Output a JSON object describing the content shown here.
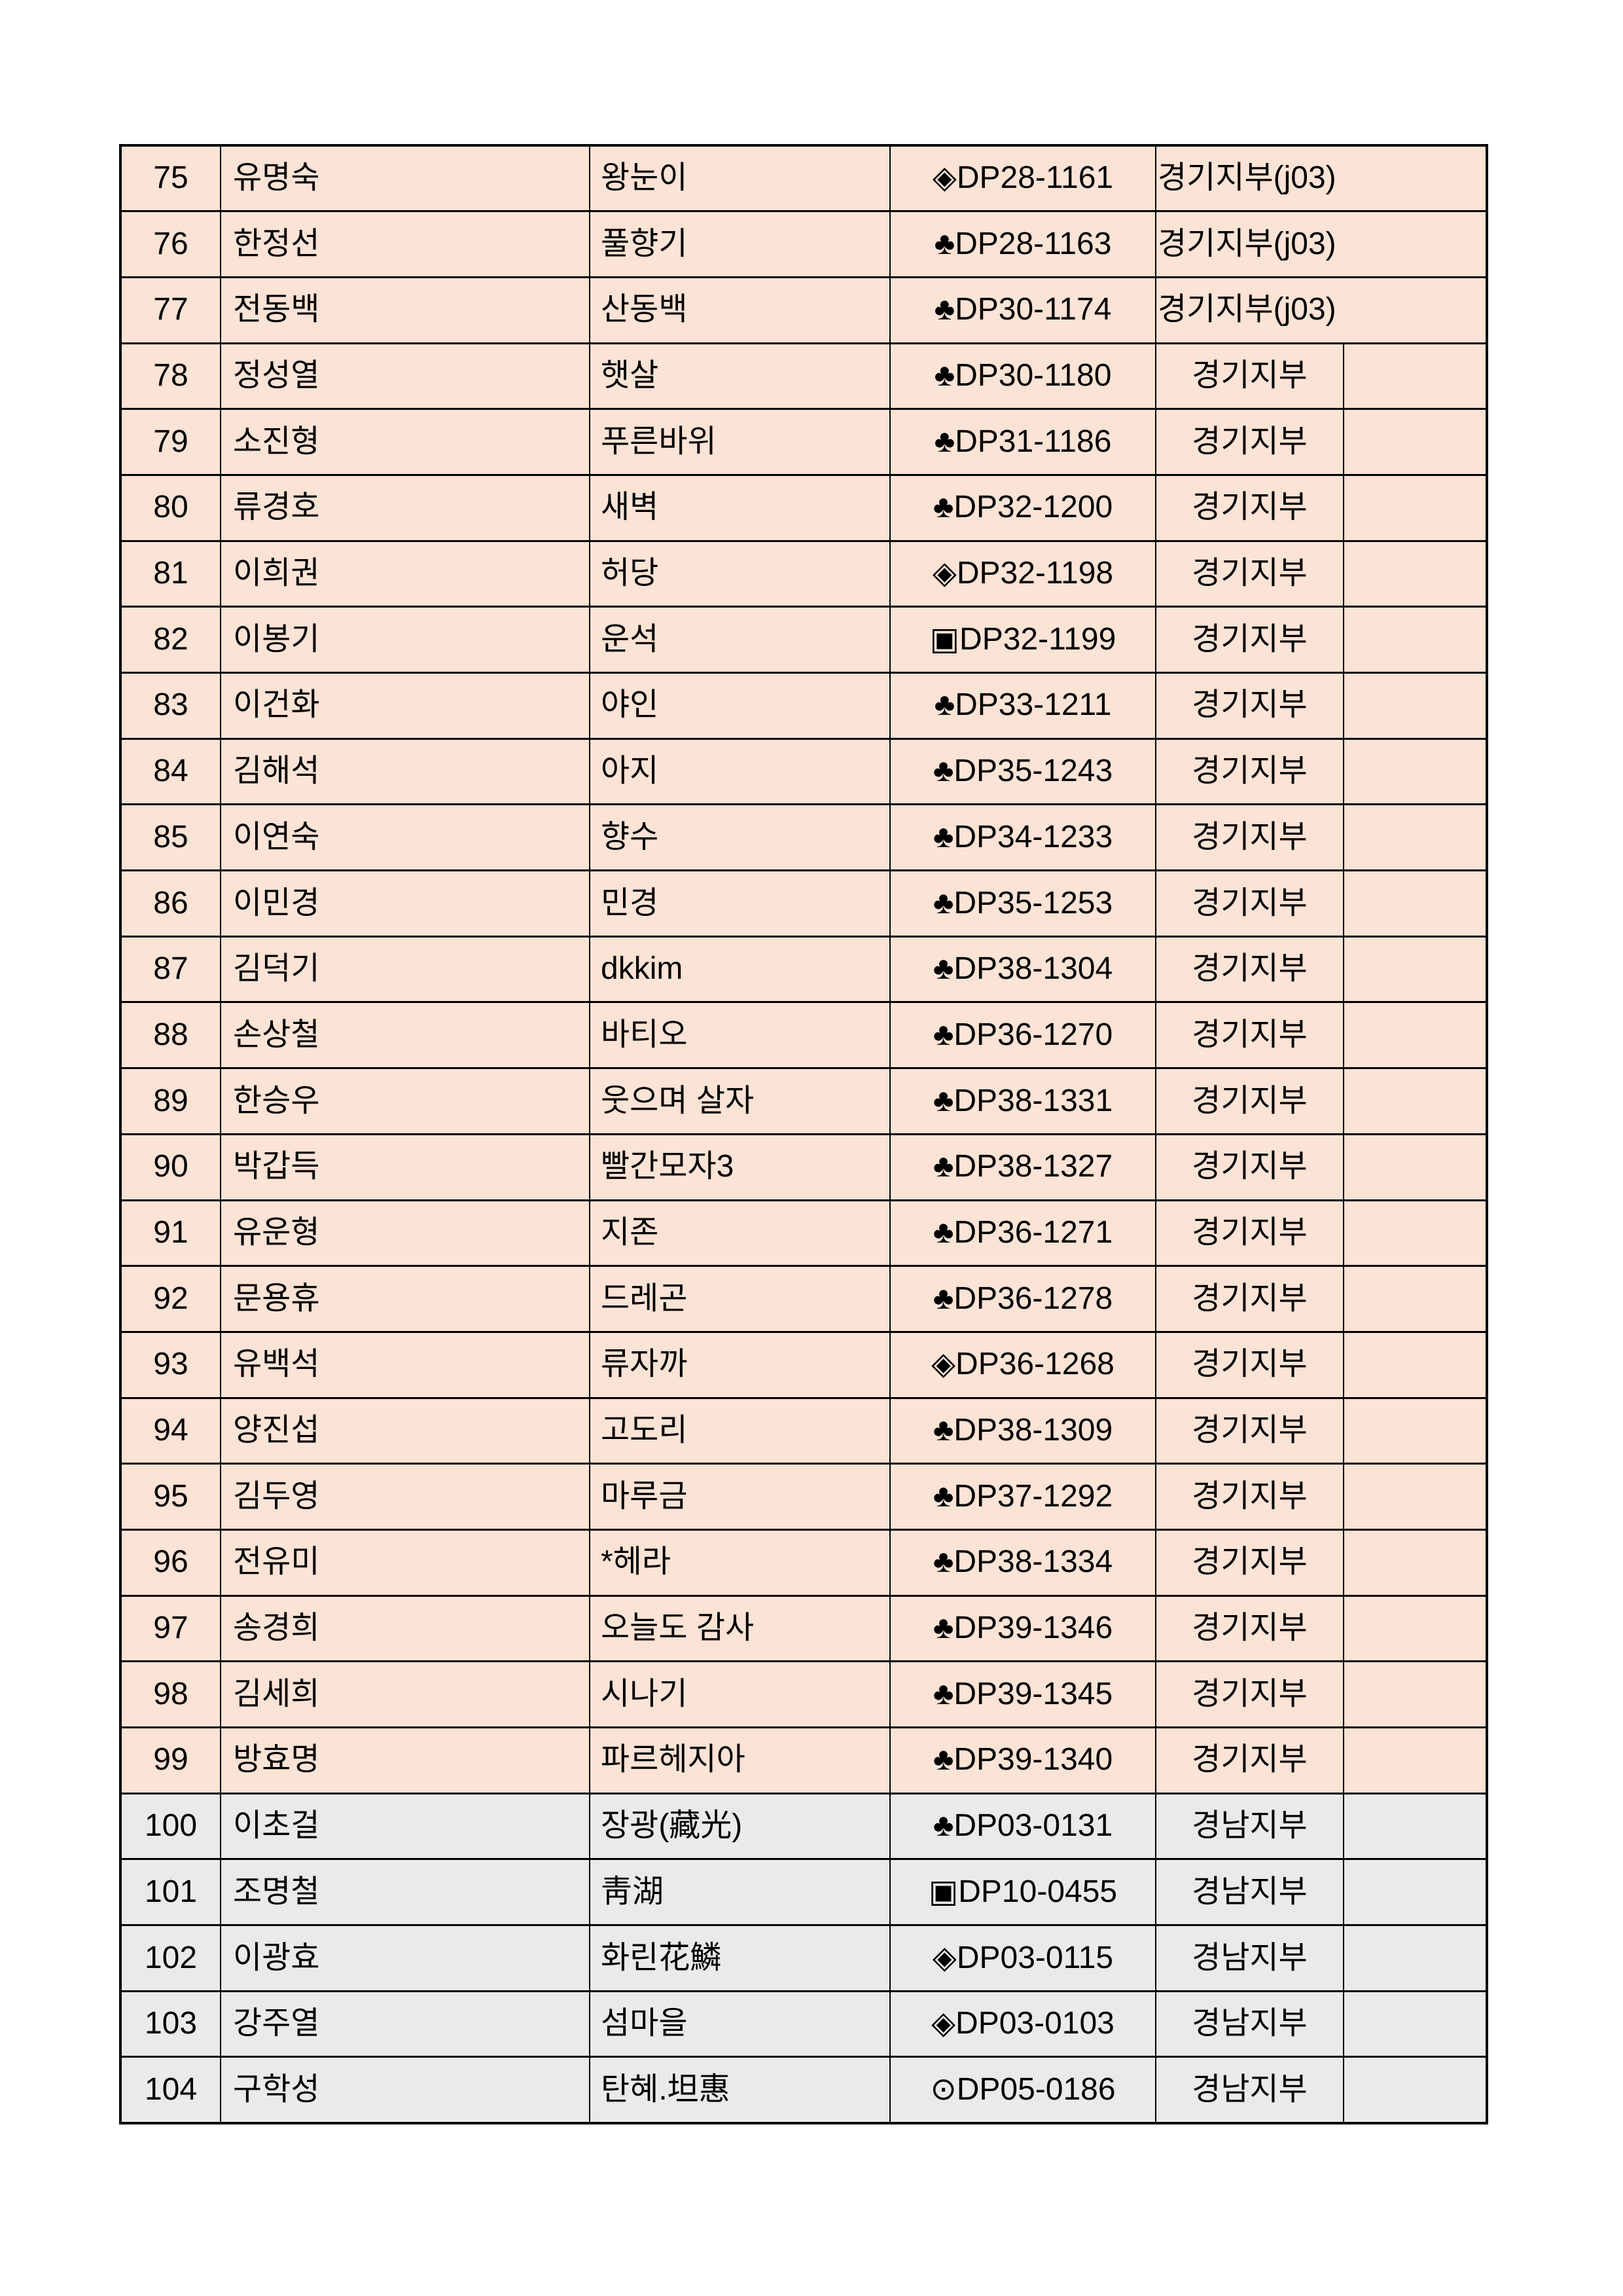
{
  "page": {
    "background": "#ffffff"
  },
  "table": {
    "colors": {
      "row_peach": "#fbe3d5",
      "row_gray": "#eaeaea",
      "border": "#000000",
      "text": "#000000"
    },
    "branch_labels": {
      "gyeonggi_j03": "경기지부(j03)",
      "gyeonggi": "경기지부",
      "gyeongnam": "경남지부"
    },
    "rows": [
      {
        "no": "75",
        "name": "유명숙",
        "nickname": "왕눈이",
        "id_symbol": "◈",
        "id_code": "DP28-1161",
        "branch": "경기지부(j03)",
        "branch_merged": true,
        "shade": "peach"
      },
      {
        "no": "76",
        "name": "한정선",
        "nickname": "풀향기",
        "id_symbol": "♣",
        "id_code": "DP28-1163",
        "branch": "경기지부(j03)",
        "branch_merged": true,
        "shade": "peach"
      },
      {
        "no": "77",
        "name": "전동백",
        "nickname": "산동백",
        "id_symbol": "♣",
        "id_code": "DP30-1174",
        "branch": "경기지부(j03)",
        "branch_merged": true,
        "shade": "peach"
      },
      {
        "no": "78",
        "name": "정성열",
        "nickname": "햇살",
        "id_symbol": "♣",
        "id_code": "DP30-1180",
        "branch": "경기지부",
        "branch_merged": false,
        "shade": "peach"
      },
      {
        "no": "79",
        "name": "소진형",
        "nickname": "푸른바위",
        "id_symbol": "♣",
        "id_code": "DP31-1186",
        "branch": "경기지부",
        "branch_merged": false,
        "shade": "peach"
      },
      {
        "no": "80",
        "name": "류경호",
        "nickname": "새벽",
        "id_symbol": "♣",
        "id_code": "DP32-1200",
        "branch": "경기지부",
        "branch_merged": false,
        "shade": "peach"
      },
      {
        "no": "81",
        "name": "이희권",
        "nickname": "허당",
        "id_symbol": "◈",
        "id_code": "DP32-1198",
        "branch": "경기지부",
        "branch_merged": false,
        "shade": "peach"
      },
      {
        "no": "82",
        "name": "이봉기",
        "nickname": "운석",
        "id_symbol": "▣",
        "id_code": "DP32-1199",
        "branch": "경기지부",
        "branch_merged": false,
        "shade": "peach"
      },
      {
        "no": "83",
        "name": "이건화",
        "nickname": "야인",
        "id_symbol": "♣",
        "id_code": "DP33-1211",
        "branch": "경기지부",
        "branch_merged": false,
        "shade": "peach"
      },
      {
        "no": "84",
        "name": "김해석",
        "nickname": "아지",
        "id_symbol": "♣",
        "id_code": "DP35-1243",
        "branch": "경기지부",
        "branch_merged": false,
        "shade": "peach"
      },
      {
        "no": "85",
        "name": "이연숙",
        "nickname": "향수",
        "id_symbol": "♣",
        "id_code": "DP34-1233",
        "branch": "경기지부",
        "branch_merged": false,
        "shade": "peach"
      },
      {
        "no": "86",
        "name": "이민경",
        "nickname": "민경",
        "id_symbol": "♣",
        "id_code": "DP35-1253",
        "branch": "경기지부",
        "branch_merged": false,
        "shade": "peach"
      },
      {
        "no": "87",
        "name": "김덕기",
        "nickname": "dkkim",
        "id_symbol": "♣",
        "id_code": "DP38-1304",
        "branch": "경기지부",
        "branch_merged": false,
        "shade": "peach"
      },
      {
        "no": "88",
        "name": "손상철",
        "nickname": "바티오",
        "id_symbol": "♣",
        "id_code": "DP36-1270",
        "branch": "경기지부",
        "branch_merged": false,
        "shade": "peach"
      },
      {
        "no": "89",
        "name": "한승우",
        "nickname": "웃으며 살자",
        "id_symbol": "♣",
        "id_code": "DP38-1331",
        "branch": "경기지부",
        "branch_merged": false,
        "shade": "peach"
      },
      {
        "no": "90",
        "name": "박갑득",
        "nickname": "빨간모자3",
        "id_symbol": "♣",
        "id_code": "DP38-1327",
        "branch": "경기지부",
        "branch_merged": false,
        "shade": "peach"
      },
      {
        "no": "91",
        "name": "유운형",
        "nickname": "지존",
        "id_symbol": "♣",
        "id_code": "DP36-1271",
        "branch": "경기지부",
        "branch_merged": false,
        "shade": "peach"
      },
      {
        "no": "92",
        "name": "문용휴",
        "nickname": "드레곤",
        "id_symbol": "♣",
        "id_code": "DP36-1278",
        "branch": "경기지부",
        "branch_merged": false,
        "shade": "peach"
      },
      {
        "no": "93",
        "name": "유백석",
        "nickname": "류자까",
        "id_symbol": "◈",
        "id_code": "DP36-1268",
        "branch": "경기지부",
        "branch_merged": false,
        "shade": "peach"
      },
      {
        "no": "94",
        "name": "양진섭",
        "nickname": "고도리",
        "id_symbol": "♣",
        "id_code": "DP38-1309",
        "branch": "경기지부",
        "branch_merged": false,
        "shade": "peach"
      },
      {
        "no": "95",
        "name": "김두영",
        "nickname": "마루금",
        "id_symbol": "♣",
        "id_code": "DP37-1292",
        "branch": "경기지부",
        "branch_merged": false,
        "shade": "peach"
      },
      {
        "no": "96",
        "name": "전유미",
        "nickname": "*헤라",
        "id_symbol": "♣",
        "id_code": "DP38-1334",
        "branch": "경기지부",
        "branch_merged": false,
        "shade": "peach"
      },
      {
        "no": "97",
        "name": "송경희",
        "nickname": "오늘도 감사",
        "id_symbol": "♣",
        "id_code": "DP39-1346",
        "branch": "경기지부",
        "branch_merged": false,
        "shade": "peach"
      },
      {
        "no": "98",
        "name": "김세희",
        "nickname": "시나기",
        "id_symbol": "♣",
        "id_code": "DP39-1345",
        "branch": "경기지부",
        "branch_merged": false,
        "shade": "peach"
      },
      {
        "no": "99",
        "name": "방효명",
        "nickname": "파르헤지아",
        "id_symbol": "♣",
        "id_code": "DP39-1340",
        "branch": "경기지부",
        "branch_merged": false,
        "shade": "peach"
      },
      {
        "no": "100",
        "name": "이초걸",
        "nickname": "장광(藏光)",
        "id_symbol": "♣",
        "id_code": "DP03-0131",
        "branch": "경남지부",
        "branch_merged": false,
        "shade": "gray"
      },
      {
        "no": "101",
        "name": "조명철",
        "nickname": "靑湖",
        "id_symbol": "▣",
        "id_code": "DP10-0455",
        "branch": "경남지부",
        "branch_merged": false,
        "shade": "gray"
      },
      {
        "no": "102",
        "name": "이광효",
        "nickname": "화린花鱗",
        "id_symbol": "◈",
        "id_code": "DP03-0115",
        "branch": "경남지부",
        "branch_merged": false,
        "shade": "gray"
      },
      {
        "no": "103",
        "name": "강주열",
        "nickname": "섬마을",
        "id_symbol": "◈",
        "id_code": "DP03-0103",
        "branch": "경남지부",
        "branch_merged": false,
        "shade": "gray"
      },
      {
        "no": "104",
        "name": "구학성",
        "nickname": "탄혜.坦惠",
        "id_symbol": "⊙",
        "id_code": "DP05-0186",
        "branch": "경남지부",
        "branch_merged": false,
        "shade": "gray"
      }
    ]
  }
}
